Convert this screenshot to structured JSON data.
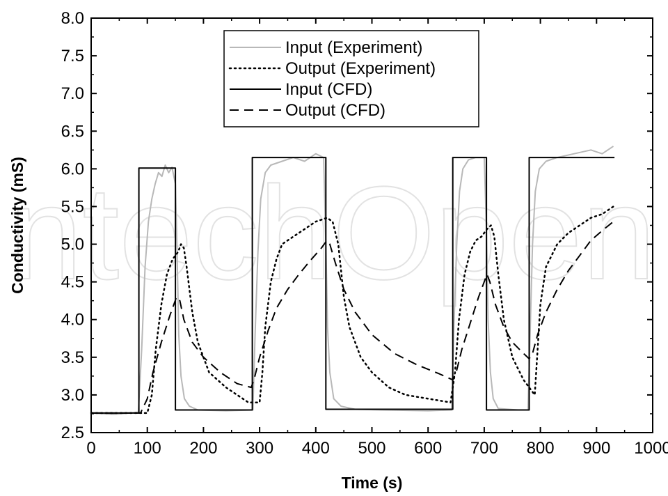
{
  "chart_data": {
    "type": "line",
    "title": "",
    "xlabel": "Time (s)",
    "ylabel": "Conductivity (mS)",
    "xlim": [
      0,
      1000
    ],
    "ylim": [
      2.5,
      8.0
    ],
    "x_ticks": [
      0,
      100,
      200,
      300,
      400,
      500,
      600,
      700,
      800,
      900,
      1000
    ],
    "y_ticks": [
      2.5,
      3.0,
      3.5,
      4.0,
      4.5,
      5.0,
      5.5,
      6.0,
      6.5,
      7.0,
      7.5,
      8.0
    ],
    "x_tick_labels": [
      "0",
      "100",
      "200",
      "300",
      "400",
      "500",
      "600",
      "700",
      "800",
      "900",
      "1000"
    ],
    "y_tick_labels": [
      "2.5",
      "3.0",
      "3.5",
      "4.0",
      "4.5",
      "5.0",
      "5.5",
      "6.0",
      "6.5",
      "7.0",
      "7.5",
      "8.0"
    ],
    "grid": false,
    "legend_position": "top-center",
    "watermark": "IntechOpen",
    "series": [
      {
        "name": "Input (Experiment)",
        "color": "#b8b8b8",
        "style": "solid",
        "x": [
          0,
          40,
          84,
          90,
          96,
          102,
          108,
          114,
          120,
          126,
          132,
          138,
          144,
          150,
          153,
          156,
          160,
          166,
          175,
          190,
          240,
          288,
          292,
          297,
          302,
          310,
          320,
          340,
          360,
          380,
          400,
          414,
          418,
          421,
          425,
          432,
          445,
          470,
          520,
          600,
          642,
          646,
          651,
          656,
          662,
          672,
          685,
          700,
          704,
          707,
          711,
          716,
          725,
          760,
          778,
          782,
          786,
          791,
          798,
          810,
          830,
          860,
          890,
          910,
          930
        ],
        "y": [
          2.76,
          2.74,
          2.77,
          3.6,
          4.7,
          5.3,
          5.6,
          5.8,
          5.95,
          5.9,
          6.05,
          5.95,
          6.02,
          5.8,
          4.9,
          3.8,
          3.25,
          2.95,
          2.85,
          2.8,
          2.79,
          2.8,
          3.8,
          4.9,
          5.6,
          5.95,
          6.05,
          6.1,
          6.15,
          6.1,
          6.2,
          6.15,
          5.0,
          3.9,
          3.3,
          2.95,
          2.85,
          2.81,
          2.8,
          2.79,
          2.8,
          3.9,
          5.0,
          5.7,
          6.0,
          6.12,
          6.15,
          6.15,
          5.2,
          4.0,
          3.3,
          2.95,
          2.82,
          2.8,
          2.8,
          3.9,
          5.0,
          5.7,
          6.0,
          6.1,
          6.15,
          6.2,
          6.25,
          6.2,
          6.3
        ]
      },
      {
        "name": "Output (Experiment)",
        "color": "#000000",
        "style": "dotted",
        "x": [
          0,
          100,
          108,
          115,
          125,
          135,
          145,
          155,
          160,
          165,
          170,
          180,
          190,
          210,
          240,
          280,
          300,
          305,
          310,
          320,
          330,
          340,
          360,
          380,
          400,
          420,
          430,
          440,
          450,
          460,
          480,
          500,
          530,
          560,
          600,
          640,
          648,
          655,
          665,
          675,
          685,
          695,
          705,
          712,
          718,
          725,
          735,
          750,
          770,
          790,
          795,
          800,
          810,
          830,
          850,
          870,
          890,
          910,
          930
        ],
        "y": [
          2.76,
          2.76,
          3.0,
          3.6,
          4.2,
          4.6,
          4.8,
          4.9,
          5.0,
          4.95,
          4.7,
          4.1,
          3.7,
          3.3,
          3.1,
          2.9,
          2.9,
          3.3,
          3.9,
          4.5,
          4.8,
          5.0,
          5.1,
          5.2,
          5.3,
          5.35,
          5.3,
          5.0,
          4.3,
          3.9,
          3.5,
          3.3,
          3.1,
          3.0,
          2.95,
          2.9,
          3.3,
          4.0,
          4.6,
          4.9,
          5.05,
          5.1,
          5.2,
          5.25,
          5.1,
          4.6,
          4.0,
          3.5,
          3.2,
          3.0,
          3.6,
          4.2,
          4.7,
          5.0,
          5.15,
          5.25,
          5.35,
          5.4,
          5.5
        ]
      },
      {
        "name": "Input (CFD)",
        "color": "#000000",
        "style": "solid",
        "x": [
          0,
          85,
          85,
          150,
          150,
          287,
          287,
          418,
          418,
          644,
          644,
          704,
          704,
          780,
          780,
          932
        ],
        "y": [
          2.76,
          2.76,
          6.01,
          6.01,
          2.8,
          2.8,
          6.15,
          6.15,
          2.81,
          2.81,
          6.15,
          6.15,
          2.8,
          2.8,
          6.15,
          6.15
        ]
      },
      {
        "name": "Output (CFD)",
        "color": "#000000",
        "style": "dashed",
        "x": [
          0,
          88,
          100,
          110,
          125,
          140,
          152,
          158,
          165,
          180,
          200,
          230,
          260,
          285,
          290,
          300,
          315,
          330,
          350,
          370,
          390,
          410,
          420,
          425,
          435,
          450,
          470,
          500,
          540,
          580,
          620,
          644,
          650,
          660,
          675,
          690,
          705,
          710,
          720,
          735,
          750,
          770,
          780,
          786,
          795,
          810,
          830,
          850,
          870,
          890,
          910,
          930
        ],
        "y": [
          2.76,
          2.76,
          2.95,
          3.3,
          3.7,
          4.05,
          4.3,
          4.25,
          4.0,
          3.7,
          3.5,
          3.3,
          3.15,
          3.1,
          3.2,
          3.5,
          3.85,
          4.15,
          4.4,
          4.6,
          4.78,
          4.95,
          5.05,
          5.0,
          4.75,
          4.4,
          4.1,
          3.8,
          3.55,
          3.4,
          3.28,
          3.2,
          3.3,
          3.6,
          3.95,
          4.3,
          4.6,
          4.5,
          4.2,
          3.9,
          3.7,
          3.55,
          3.48,
          3.55,
          3.8,
          4.1,
          4.4,
          4.65,
          4.85,
          5.05,
          5.18,
          5.3
        ]
      }
    ]
  }
}
